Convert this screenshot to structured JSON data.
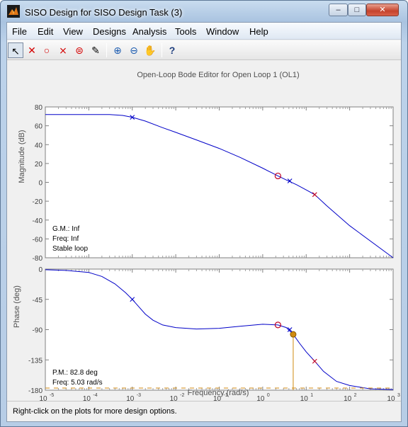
{
  "window": {
    "title": "SISO Design for SISO Design Task (3)",
    "minimize_glyph": "‒",
    "maximize_glyph": "□",
    "close_glyph": "✕"
  },
  "menu": [
    "File",
    "Edit",
    "View",
    "Designs",
    "Analysis",
    "Tools",
    "Window",
    "Help"
  ],
  "toolbar": {
    "tools": [
      {
        "name": "select-tool",
        "icon": "arrow-pointer-icon",
        "glyph": "↖",
        "color": "#000000"
      },
      {
        "name": "delete-tool",
        "icon": "delete-x-icon",
        "glyph": "✕",
        "color": "#d40000"
      },
      {
        "name": "add-zero-tool",
        "icon": "zero-circle-icon",
        "glyph": "○",
        "color": "#d40000"
      },
      {
        "name": "add-pole-pair-tool",
        "icon": "complex-pole-icon",
        "glyph": "⨯",
        "color": "#d40000"
      },
      {
        "name": "add-zero-pair-tool",
        "icon": "complex-zero-icon",
        "glyph": "⊜",
        "color": "#d40000"
      },
      {
        "name": "eraser-tool",
        "icon": "eraser-icon",
        "glyph": "✎",
        "color": "#000000"
      },
      {
        "name": "zoom-in-tool",
        "icon": "zoom-in-icon",
        "glyph": "⊕",
        "color": "#1c5cb0"
      },
      {
        "name": "zoom-out-tool",
        "icon": "zoom-out-icon",
        "glyph": "⊖",
        "color": "#1c5cb0"
      },
      {
        "name": "pan-tool",
        "icon": "hand-icon",
        "glyph": "✋",
        "color": "#444444"
      },
      {
        "name": "context-help-tool",
        "icon": "context-help-icon",
        "glyph": "?",
        "color": "#1c3c7c"
      }
    ]
  },
  "status_text": "Right-click on the plots for more design options.",
  "chart_data": [
    {
      "type": "line",
      "title": "Open-Loop Bode Editor for Open Loop 1 (OL1)",
      "ylabel": "Magnitude (dB)",
      "xscale": "log",
      "xlim": [
        1e-05,
        1000
      ],
      "ylim": [
        -80,
        80
      ],
      "yticks": [
        80,
        60,
        40,
        20,
        0,
        -20,
        -40,
        -60,
        -80
      ],
      "series_color": "#0000c8",
      "series": [
        {
          "x": [
            1e-05,
            3e-05,
            0.0001,
            0.0003,
            0.0006,
            0.001,
            0.002,
            0.005,
            0.01,
            0.03,
            0.1,
            0.3,
            1,
            2.24,
            3.5,
            6,
            10,
            15.7,
            30,
            100,
            1000
          ],
          "y": [
            72,
            72,
            72,
            72,
            71,
            69,
            65,
            58,
            53,
            45,
            36,
            26.5,
            15,
            6.8,
            2.5,
            -2.5,
            -8,
            -13,
            -25,
            -46,
            -80
          ]
        }
      ],
      "annotations": {
        "zero": {
          "x": 2.24,
          "y": 6.8,
          "color": "#c00020"
        },
        "poles": [
          {
            "x": 0.001,
            "y": 69,
            "color": "#0000c8"
          },
          {
            "x": 4.2,
            "y": 1.5,
            "color": "#0000c8"
          },
          {
            "x": 15.7,
            "y": -13,
            "color": "#c00020"
          }
        ]
      },
      "text_block": [
        "G.M.: Inf",
        "Freq: Inf",
        "Stable loop"
      ]
    },
    {
      "type": "line",
      "xlabel": "Frequency (rad/s)",
      "ylabel": "Phase (deg)",
      "xscale": "log",
      "xlim": [
        1e-05,
        1000
      ],
      "ylim": [
        -180,
        0
      ],
      "yticks": [
        0,
        -45,
        -90,
        -135,
        -180
      ],
      "xticks": [
        {
          "base": "10",
          "exp": "-5"
        },
        {
          "base": "10",
          "exp": "-4"
        },
        {
          "base": "10",
          "exp": "-3"
        },
        {
          "base": "10",
          "exp": "-2"
        },
        {
          "base": "10",
          "exp": "-1"
        },
        {
          "base": "10",
          "exp": "0"
        },
        {
          "base": "10",
          "exp": "1"
        },
        {
          "base": "10",
          "exp": "2"
        },
        {
          "base": "10",
          "exp": "3"
        }
      ],
      "series_color": "#0000c8",
      "series": [
        {
          "x": [
            1e-05,
            3e-05,
            0.0001,
            0.0002,
            0.0004,
            0.0007,
            0.001,
            0.0015,
            0.002,
            0.003,
            0.005,
            0.01,
            0.03,
            0.1,
            0.3,
            1,
            2.24,
            3.5,
            5.03,
            7,
            10,
            15.7,
            25,
            50,
            100,
            300,
            1000
          ],
          "y": [
            -1,
            -2,
            -5,
            -11,
            -22,
            -35,
            -45,
            -58,
            -67,
            -76,
            -83,
            -87,
            -89,
            -88,
            -85,
            -82,
            -83,
            -87,
            -97,
            -110,
            -123,
            -137,
            -152,
            -167,
            -173,
            -178,
            -179
          ]
        }
      ],
      "annotations": {
        "zero": {
          "x": 2.24,
          "y": -83,
          "color": "#c00020"
        },
        "poles": [
          {
            "x": 0.001,
            "y": -45,
            "color": "#0000c8"
          },
          {
            "x": 4.2,
            "y": -90,
            "color": "#0000c8"
          },
          {
            "x": 15.7,
            "y": -137,
            "color": "#c00020"
          }
        ],
        "phase_margin_point": {
          "x": 5.03,
          "y": -97,
          "color": "#d08a10"
        },
        "reference_line_y": -180
      },
      "text_block": [
        "P.M.: 82.8 deg",
        "Freq: 5.03 rad/s"
      ]
    }
  ]
}
